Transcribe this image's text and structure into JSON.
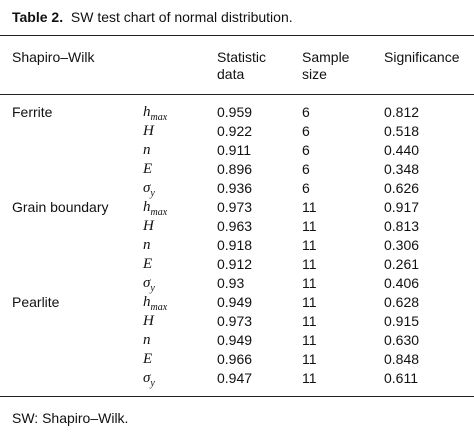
{
  "table": {
    "label": "Table 2.",
    "caption": "SW test chart of normal distribution.",
    "headers": [
      "Shapiro–Wilk",
      "Statistic data",
      "Sample size",
      "Significance"
    ],
    "groups": [
      {
        "name": "Ferrite",
        "rows": [
          {
            "var": "h",
            "sub": "max",
            "statistic": "0.959",
            "size": "6",
            "significance": "0.812"
          },
          {
            "var": "H",
            "statistic": "0.922",
            "size": "6",
            "significance": "0.518"
          },
          {
            "var": "n",
            "statistic": "0.911",
            "size": "6",
            "significance": "0.440"
          },
          {
            "var": "E",
            "statistic": "0.896",
            "size": "6",
            "significance": "0.348"
          },
          {
            "var": "σ",
            "sub": "y",
            "statistic": "0.936",
            "size": "6",
            "significance": "0.626"
          }
        ]
      },
      {
        "name": "Grain boundary",
        "rows": [
          {
            "var": "h",
            "sub": "max",
            "statistic": "0.973",
            "size": "11",
            "significance": "0.917"
          },
          {
            "var": "H",
            "statistic": "0.963",
            "size": "11",
            "significance": "0.813"
          },
          {
            "var": "n",
            "statistic": "0.918",
            "size": "11",
            "significance": "0.306"
          },
          {
            "var": "E",
            "statistic": "0.912",
            "size": "11",
            "significance": "0.261"
          },
          {
            "var": "σ",
            "sub": "y",
            "statistic": "0.93",
            "size": "11",
            "significance": "0.406"
          }
        ]
      },
      {
        "name": "Pearlite",
        "rows": [
          {
            "var": "h",
            "sub": "max",
            "statistic": "0.949",
            "size": "11",
            "significance": "0.628"
          },
          {
            "var": "H",
            "statistic": "0.973",
            "size": "11",
            "significance": "0.915"
          },
          {
            "var": "n",
            "statistic": "0.949",
            "size": "11",
            "significance": "0.630"
          },
          {
            "var": "E",
            "statistic": "0.966",
            "size": "11",
            "significance": "0.848"
          },
          {
            "var": "σ",
            "sub": "y",
            "statistic": "0.947",
            "size": "11",
            "significance": "0.611"
          }
        ]
      }
    ],
    "footnote": "SW: Shapiro–Wilk."
  }
}
